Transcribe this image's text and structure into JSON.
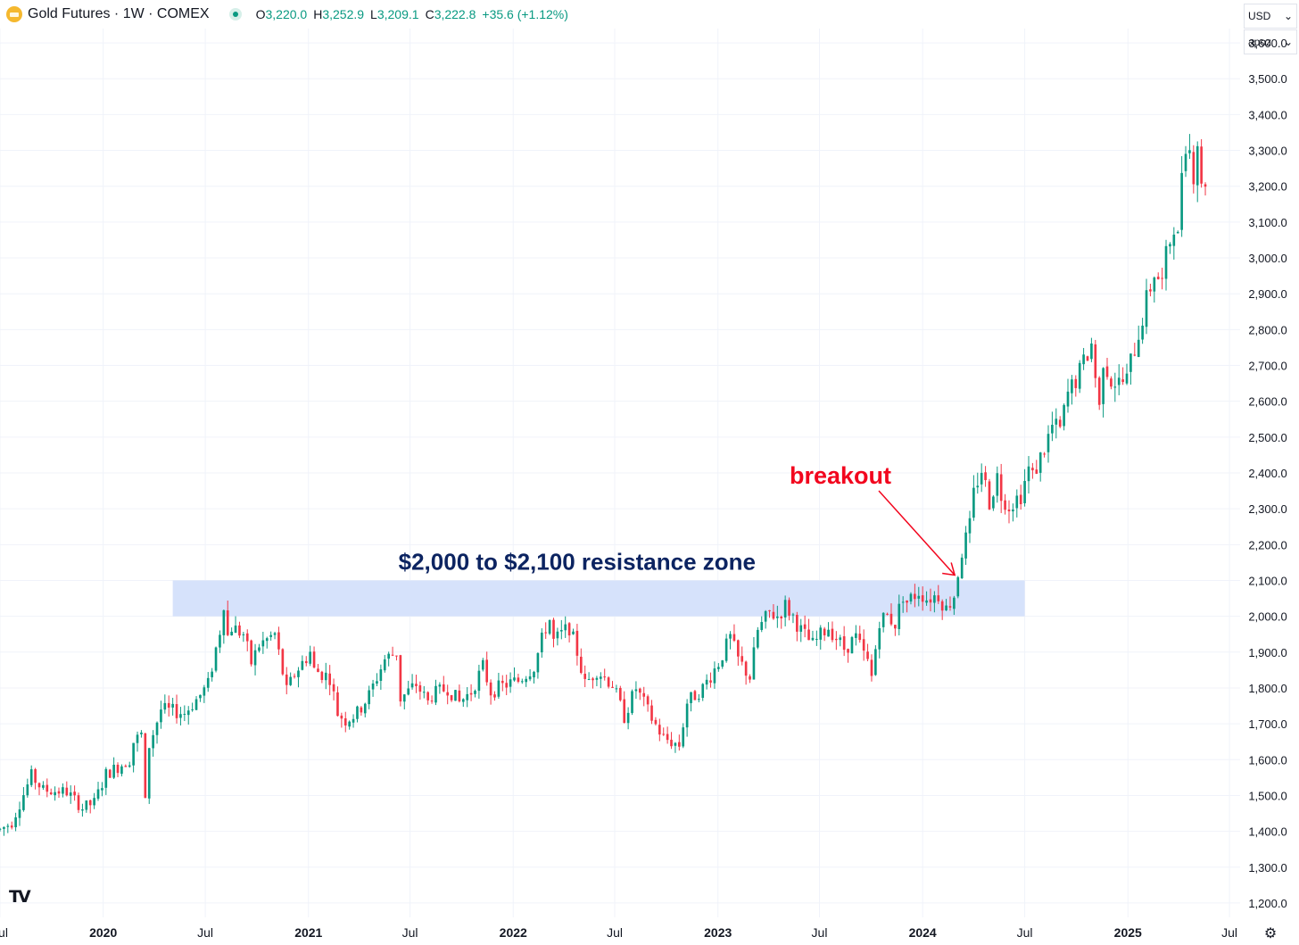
{
  "header": {
    "symbol": "Gold Futures · 1W · COMEX",
    "open_label": "O",
    "open": "3,220.0",
    "high_label": "H",
    "high": "3,252.9",
    "low_label": "L",
    "low": "3,209.1",
    "close_label": "C",
    "close": "3,222.8",
    "change": "+35.6 (+1.12%)"
  },
  "controls": {
    "currency": "USD",
    "scale": "apoz"
  },
  "colors": {
    "up": "#089981",
    "down": "#f23645",
    "zone": "#d4e0fb",
    "annotation": "#f2061e",
    "zone_label": "#0c2461"
  },
  "chart_data": {
    "type": "candlestick",
    "instrument": "Gold Futures",
    "interval": "1W",
    "exchange": "COMEX",
    "ylim": [
      1160,
      3640
    ],
    "yticks": [
      1200,
      1300,
      1400,
      1500,
      1600,
      1700,
      1800,
      1900,
      2000,
      2100,
      2200,
      2300,
      2400,
      2500,
      2600,
      2700,
      2800,
      2900,
      3000,
      3100,
      3200,
      3300,
      3400,
      3500,
      3600
    ],
    "ytick_labels": [
      "1,200.0",
      "1,300.0",
      "1,400.0",
      "1,500.0",
      "1,600.0",
      "1,700.0",
      "1,800.0",
      "1,900.0",
      "2,000.0",
      "2,100.0",
      "2,200.0",
      "2,300.0",
      "2,400.0",
      "2,500.0",
      "2,600.0",
      "2,700.0",
      "2,800.0",
      "2,900.0",
      "3,000.0",
      "3,100.0",
      "3,200.0",
      "3,300.0",
      "3,400.0",
      "3,500.0",
      "3,600.0"
    ],
    "xlim": [
      "2019-07-01",
      "2025-07-20"
    ],
    "xticks": [
      {
        "date": "2019-07-01",
        "label": "Jul",
        "bold": false
      },
      {
        "date": "2020-01-01",
        "label": "2020",
        "bold": true
      },
      {
        "date": "2020-07-01",
        "label": "Jul",
        "bold": false
      },
      {
        "date": "2021-01-01",
        "label": "2021",
        "bold": true
      },
      {
        "date": "2021-07-01",
        "label": "Jul",
        "bold": false
      },
      {
        "date": "2022-01-01",
        "label": "2022",
        "bold": true
      },
      {
        "date": "2022-07-01",
        "label": "Jul",
        "bold": false
      },
      {
        "date": "2023-01-01",
        "label": "2023",
        "bold": true
      },
      {
        "date": "2023-07-01",
        "label": "Jul",
        "bold": false
      },
      {
        "date": "2024-01-01",
        "label": "2024",
        "bold": true
      },
      {
        "date": "2024-07-01",
        "label": "Jul",
        "bold": false
      },
      {
        "date": "2025-01-01",
        "label": "2025",
        "bold": true
      },
      {
        "date": "2025-07-01",
        "label": "Jul",
        "bold": false
      }
    ],
    "price_path": [
      [
        "2019-07-01",
        1405
      ],
      [
        "2019-07-22",
        1425
      ],
      [
        "2019-08-26",
        1555
      ],
      [
        "2019-09-16",
        1515
      ],
      [
        "2019-10-28",
        1510
      ],
      [
        "2019-11-25",
        1465
      ],
      [
        "2019-12-16",
        1480
      ],
      [
        "2020-01-06",
        1560
      ],
      [
        "2020-02-17",
        1600
      ],
      [
        "2020-02-24",
        1650
      ],
      [
        "2020-03-09",
        1670
      ],
      [
        "2020-03-16",
        1480
      ],
      [
        "2020-03-23",
        1640
      ],
      [
        "2020-04-13",
        1740
      ],
      [
        "2020-05-25",
        1730
      ],
      [
        "2020-06-22",
        1780
      ],
      [
        "2020-07-06",
        1810
      ],
      [
        "2020-07-27",
        1960
      ],
      [
        "2020-08-03",
        2040
      ],
      [
        "2020-08-10",
        1945
      ],
      [
        "2020-08-17",
        1970
      ],
      [
        "2020-09-07",
        1950
      ],
      [
        "2020-09-21",
        1870
      ],
      [
        "2020-10-05",
        1920
      ],
      [
        "2020-11-02",
        1950
      ],
      [
        "2020-11-23",
        1790
      ],
      [
        "2020-12-07",
        1840
      ],
      [
        "2021-01-04",
        1900
      ],
      [
        "2021-01-11",
        1850
      ],
      [
        "2021-02-08",
        1830
      ],
      [
        "2021-02-22",
        1730
      ],
      [
        "2021-03-08",
        1710
      ],
      [
        "2021-03-29",
        1730
      ],
      [
        "2021-04-19",
        1780
      ],
      [
        "2021-05-17",
        1880
      ],
      [
        "2021-06-07",
        1900
      ],
      [
        "2021-06-14",
        1770
      ],
      [
        "2021-07-12",
        1810
      ],
      [
        "2021-08-02",
        1760
      ],
      [
        "2021-08-09",
        1780
      ],
      [
        "2021-09-06",
        1800
      ],
      [
        "2021-09-27",
        1760
      ],
      [
        "2021-10-18",
        1790
      ],
      [
        "2021-11-08",
        1860
      ],
      [
        "2021-11-22",
        1790
      ],
      [
        "2021-12-20",
        1810
      ],
      [
        "2022-01-10",
        1820
      ],
      [
        "2022-02-07",
        1860
      ],
      [
        "2022-02-28",
        1970
      ],
      [
        "2022-03-07",
        1990
      ],
      [
        "2022-03-14",
        1930
      ],
      [
        "2022-04-11",
        1970
      ],
      [
        "2022-04-25",
        1900
      ],
      [
        "2022-05-09",
        1810
      ],
      [
        "2022-05-30",
        1850
      ],
      [
        "2022-06-27",
        1810
      ],
      [
        "2022-07-18",
        1720
      ],
      [
        "2022-08-08",
        1800
      ],
      [
        "2022-09-05",
        1715
      ],
      [
        "2022-09-26",
        1660
      ],
      [
        "2022-10-24",
        1640
      ],
      [
        "2022-11-07",
        1760
      ],
      [
        "2022-12-05",
        1800
      ],
      [
        "2023-01-02",
        1870
      ],
      [
        "2023-01-23",
        1940
      ],
      [
        "2023-02-06",
        1880
      ],
      [
        "2023-02-27",
        1830
      ],
      [
        "2023-03-13",
        1960
      ],
      [
        "2023-04-03",
        2010
      ],
      [
        "2023-04-17",
        2000
      ],
      [
        "2023-05-01",
        2030
      ],
      [
        "2023-05-15",
        2000
      ],
      [
        "2023-05-29",
        1960
      ],
      [
        "2023-06-19",
        1920
      ],
      [
        "2023-07-10",
        1960
      ],
      [
        "2023-07-17",
        1970
      ],
      [
        "2023-08-14",
        1910
      ],
      [
        "2023-09-04",
        1940
      ],
      [
        "2023-09-25",
        1870
      ],
      [
        "2023-10-02",
        1830
      ],
      [
        "2023-10-16",
        1990
      ],
      [
        "2023-10-30",
        2000
      ],
      [
        "2023-11-13",
        1980
      ],
      [
        "2023-11-27",
        2060
      ],
      [
        "2023-12-04",
        2040
      ],
      [
        "2023-12-25",
        2070
      ],
      [
        "2024-01-08",
        2050
      ],
      [
        "2024-01-29",
        2060
      ],
      [
        "2024-02-12",
        2020
      ],
      [
        "2024-02-26",
        2060
      ],
      [
        "2024-03-04",
        2120
      ],
      [
        "2024-03-11",
        2180
      ],
      [
        "2024-03-25",
        2250
      ],
      [
        "2024-04-01",
        2340
      ],
      [
        "2024-04-08",
        2380
      ],
      [
        "2024-04-15",
        2410
      ],
      [
        "2024-04-29",
        2320
      ],
      [
        "2024-05-13",
        2390
      ],
      [
        "2024-05-20",
        2340
      ],
      [
        "2024-06-03",
        2310
      ],
      [
        "2024-06-24",
        2340
      ],
      [
        "2024-07-08",
        2410
      ],
      [
        "2024-07-15",
        2390
      ],
      [
        "2024-08-05",
        2470
      ],
      [
        "2024-08-19",
        2530
      ],
      [
        "2024-09-02",
        2520
      ],
      [
        "2024-09-16",
        2620
      ],
      [
        "2024-10-07",
        2680
      ],
      [
        "2024-10-28",
        2760
      ],
      [
        "2024-11-11",
        2580
      ],
      [
        "2024-11-18",
        2720
      ],
      [
        "2024-12-02",
        2660
      ],
      [
        "2024-12-16",
        2650
      ],
      [
        "2024-12-30",
        2660
      ],
      [
        "2025-01-06",
        2710
      ],
      [
        "2025-01-20",
        2790
      ],
      [
        "2025-02-03",
        2880
      ],
      [
        "2025-02-17",
        2960
      ],
      [
        "2025-03-03",
        2930
      ],
      [
        "2025-03-10",
        3000
      ],
      [
        "2025-03-24",
        3100
      ],
      [
        "2025-03-31",
        3050
      ],
      [
        "2025-04-07",
        3250
      ],
      [
        "2025-04-14",
        3330
      ],
      [
        "2025-04-21",
        3300
      ],
      [
        "2025-04-28",
        3240
      ],
      [
        "2025-05-05",
        3330
      ],
      [
        "2025-05-12",
        3190
      ],
      [
        "2025-05-19",
        3222.8
      ]
    ],
    "zone": {
      "from": 2000,
      "to": 2100,
      "start": "2020-05-04",
      "end": "2024-07-01",
      "label": "$2,000 to $2,100 resistance zone"
    },
    "annotation": {
      "text": "breakout",
      "points_to": "2024-03-11"
    }
  }
}
